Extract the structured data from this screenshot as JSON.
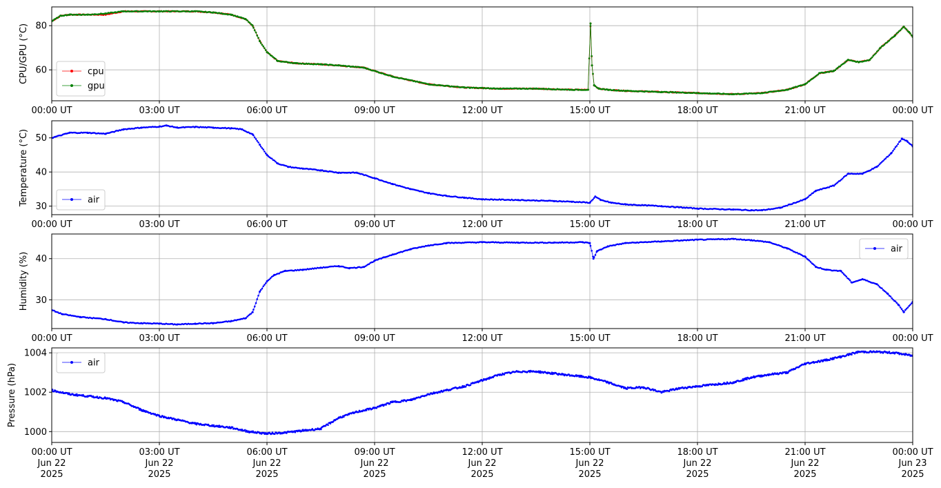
{
  "chart_data": [
    {
      "type": "line",
      "ylabel": "CPU/GPU (°C)",
      "ylim": [
        46,
        88.5
      ],
      "yticks": [
        60,
        80
      ],
      "xlim": [
        0,
        24
      ],
      "xticks": [
        0,
        3,
        6,
        9,
        12,
        15,
        18,
        21,
        24
      ],
      "xtick_labels": [
        "00:00 UT",
        "03:00 UT",
        "06:00 UT",
        "09:00 UT",
        "12:00 UT",
        "15:00 UT",
        "18:00 UT",
        "21:00 UT",
        "00:00 UT"
      ],
      "grid": true,
      "legend": "lower-left",
      "series": [
        {
          "name": "cpu",
          "color": "#ff0000",
          "x": [
            0,
            0.25,
            0.5,
            1.0,
            1.5,
            2.0,
            3.0,
            4.0,
            4.5,
            5.0,
            5.4,
            5.6,
            5.8,
            6.0,
            6.3,
            6.8,
            7.5,
            8.0,
            8.7,
            9.5,
            10.5,
            11.5,
            12.5,
            13.5,
            14.5,
            14.95,
            15.02,
            15.06,
            15.12,
            15.25,
            15.5,
            16.0,
            17.0,
            18.0,
            19.0,
            19.8,
            20.5,
            21.0,
            21.4,
            21.8,
            22.2,
            22.5,
            22.8,
            23.1,
            23.5,
            23.75,
            23.9,
            24.0
          ],
          "y": [
            82,
            84.5,
            85,
            85,
            85,
            86.5,
            86.5,
            86.5,
            86,
            85,
            83,
            80,
            73,
            68,
            64,
            63,
            62.5,
            62,
            61,
            57,
            53.5,
            52,
            51.5,
            51.5,
            51,
            51,
            81,
            62,
            53,
            51.5,
            51,
            50.5,
            50,
            49.5,
            49,
            49.5,
            51,
            53.5,
            58.5,
            59.5,
            64.5,
            63.5,
            64.5,
            70,
            75.5,
            79.5,
            77,
            75
          ]
        },
        {
          "name": "gpu",
          "color": "#008000",
          "x": [
            0,
            0.25,
            0.5,
            1.0,
            1.5,
            2.0,
            3.0,
            4.0,
            4.5,
            5.0,
            5.4,
            5.6,
            5.8,
            6.0,
            6.3,
            6.8,
            7.5,
            8.0,
            8.7,
            9.5,
            10.5,
            11.5,
            12.5,
            13.5,
            14.5,
            14.95,
            15.02,
            15.06,
            15.12,
            15.25,
            15.5,
            16.0,
            17.0,
            18.0,
            19.0,
            19.8,
            20.5,
            21.0,
            21.4,
            21.8,
            22.2,
            22.5,
            22.8,
            23.1,
            23.5,
            23.75,
            23.9,
            24.0
          ],
          "y": [
            82,
            84.5,
            85,
            85,
            85.5,
            86.5,
            86.5,
            86.5,
            86,
            85,
            83,
            80,
            73,
            68,
            64,
            63,
            62.5,
            62,
            61,
            57,
            53.5,
            52,
            51.5,
            51.5,
            51,
            51,
            81,
            62,
            53,
            51.5,
            51,
            50.5,
            50,
            49.5,
            49,
            49.5,
            51,
            53.5,
            58.5,
            59.5,
            64.5,
            63.5,
            64.5,
            70,
            75.5,
            79.5,
            77,
            75
          ]
        }
      ]
    },
    {
      "type": "line",
      "ylabel": "Temperature (°C)",
      "ylim": [
        27.5,
        55
      ],
      "yticks": [
        30,
        40,
        50
      ],
      "xlim": [
        0,
        24
      ],
      "xticks": [
        0,
        3,
        6,
        9,
        12,
        15,
        18,
        21,
        24
      ],
      "xtick_labels": [
        "00:00 UT",
        "03:00 UT",
        "06:00 UT",
        "09:00 UT",
        "12:00 UT",
        "15:00 UT",
        "18:00 UT",
        "21:00 UT",
        "00:00 UT"
      ],
      "grid": true,
      "legend": "lower-left",
      "series": [
        {
          "name": "air",
          "color": "#0000ff",
          "x": [
            0,
            0.5,
            1.0,
            1.5,
            2.0,
            2.5,
            3.0,
            3.2,
            3.5,
            4.0,
            4.5,
            5.0,
            5.3,
            5.6,
            5.8,
            6.0,
            6.3,
            6.6,
            7.0,
            7.5,
            8.0,
            8.5,
            9.0,
            9.5,
            10.0,
            10.5,
            11.0,
            11.5,
            12.0,
            13.0,
            14.0,
            14.5,
            15.0,
            15.15,
            15.3,
            15.6,
            16.0,
            17.0,
            18.0,
            19.0,
            19.5,
            19.8,
            20.3,
            21.0,
            21.3,
            21.8,
            22.2,
            22.6,
            23.0,
            23.4,
            23.7,
            23.85,
            24.0
          ],
          "y": [
            50,
            51.5,
            51.5,
            51.2,
            52.5,
            53,
            53.3,
            53.6,
            53,
            53.2,
            53,
            52.8,
            52.5,
            51,
            48,
            45,
            42.5,
            41.5,
            41,
            40.5,
            39.8,
            39.8,
            38.2,
            36.5,
            35,
            33.8,
            33,
            32.5,
            32,
            31.8,
            31.5,
            31.3,
            31,
            32.8,
            31.8,
            31,
            30.5,
            30,
            29.3,
            29,
            28.8,
            28.8,
            29.5,
            32,
            34.5,
            36,
            39.5,
            39.5,
            41.5,
            45.5,
            49.8,
            49,
            47.5
          ]
        }
      ]
    },
    {
      "type": "line",
      "ylabel": "Humidity (%)",
      "ylim": [
        23,
        46
      ],
      "yticks": [
        30,
        40
      ],
      "xlim": [
        0,
        24
      ],
      "xticks": [
        0,
        3,
        6,
        9,
        12,
        15,
        18,
        21,
        24
      ],
      "xtick_labels": [
        "00:00 UT",
        "03:00 UT",
        "06:00 UT",
        "09:00 UT",
        "12:00 UT",
        "15:00 UT",
        "18:00 UT",
        "21:00 UT",
        "00:00 UT"
      ],
      "grid": true,
      "legend": "upper-right",
      "series": [
        {
          "name": "air",
          "color": "#0000ff",
          "x": [
            0,
            0.3,
            0.8,
            1.5,
            2.0,
            2.5,
            3.0,
            3.5,
            4.0,
            4.5,
            5.0,
            5.4,
            5.6,
            5.8,
            6.0,
            6.2,
            6.5,
            7.0,
            7.5,
            8.0,
            8.3,
            8.7,
            9.0,
            9.5,
            10.0,
            10.5,
            11.0,
            12.0,
            13.0,
            14.0,
            14.8,
            15.0,
            15.1,
            15.2,
            15.5,
            16.0,
            17.0,
            18.0,
            19.0,
            19.5,
            20.0,
            20.5,
            21.0,
            21.3,
            21.6,
            22.0,
            22.3,
            22.6,
            23.0,
            23.3,
            23.6,
            23.75,
            24.0
          ],
          "y": [
            27.5,
            26.5,
            25.8,
            25.3,
            24.5,
            24.3,
            24.2,
            24,
            24.2,
            24.3,
            24.8,
            25.5,
            27,
            32,
            34.5,
            36,
            37,
            37.3,
            37.8,
            38.2,
            37.7,
            38,
            39.5,
            41,
            42.3,
            43.2,
            43.8,
            44,
            43.9,
            43.9,
            44,
            43.8,
            40,
            41.8,
            43,
            43.8,
            44.2,
            44.6,
            44.8,
            44.5,
            44,
            42.5,
            40.5,
            38,
            37.3,
            37,
            34.2,
            35,
            33.8,
            31.5,
            28.8,
            27,
            29.5
          ]
        }
      ]
    },
    {
      "type": "scatter",
      "ylabel": "Pressure (hPa)",
      "ylim": [
        999.45,
        1004.25
      ],
      "yticks": [
        1000,
        1002,
        1004
      ],
      "xlim": [
        0,
        24
      ],
      "xticks": [
        0,
        3,
        6,
        9,
        12,
        15,
        18,
        21,
        24
      ],
      "xtick_labels": [
        [
          "00:00 UT",
          "Jun 22",
          "2025"
        ],
        [
          "03:00 UT",
          "Jun 22",
          "2025"
        ],
        [
          "06:00 UT",
          "Jun 22",
          "2025"
        ],
        [
          "09:00 UT",
          "Jun 22",
          "2025"
        ],
        [
          "12:00 UT",
          "Jun 22",
          "2025"
        ],
        [
          "15:00 UT",
          "Jun 22",
          "2025"
        ],
        [
          "18:00 UT",
          "Jun 22",
          "2025"
        ],
        [
          "21:00 UT",
          "Jun 22",
          "2025"
        ],
        [
          "00:00 UT",
          "Jun 23",
          "2025"
        ]
      ],
      "grid": true,
      "legend": "upper-left",
      "series": [
        {
          "name": "air",
          "color": "#0000ff",
          "x": [
            0,
            0.5,
            1.0,
            1.5,
            2.0,
            2.5,
            3.0,
            3.5,
            4.0,
            4.5,
            5.0,
            5.5,
            6.0,
            6.5,
            7.0,
            7.5,
            8.0,
            8.5,
            9.0,
            9.5,
            10.0,
            10.5,
            11.0,
            11.5,
            12.0,
            12.5,
            13.0,
            13.5,
            14.0,
            14.5,
            15.0,
            15.5,
            16.0,
            16.5,
            17.0,
            17.5,
            18.0,
            18.5,
            19.0,
            19.5,
            20.0,
            20.5,
            21.0,
            21.5,
            22.0,
            22.5,
            23.0,
            23.5,
            24.0
          ],
          "y": [
            1002.1,
            1001.9,
            1001.8,
            1001.7,
            1001.5,
            1001.1,
            1000.8,
            1000.6,
            1000.4,
            1000.3,
            1000.2,
            1000.0,
            999.9,
            999.95,
            1000.05,
            1000.15,
            1000.7,
            1001.0,
            1001.2,
            1001.5,
            1001.6,
            1001.9,
            1002.1,
            1002.3,
            1002.6,
            1002.9,
            1003.05,
            1003.05,
            1002.95,
            1002.85,
            1002.75,
            1002.5,
            1002.2,
            1002.25,
            1002.0,
            1002.2,
            1002.3,
            1002.4,
            1002.5,
            1002.75,
            1002.9,
            1003.0,
            1003.45,
            1003.6,
            1003.8,
            1004.05,
            1004.05,
            1004.0,
            1003.85
          ]
        }
      ]
    }
  ]
}
